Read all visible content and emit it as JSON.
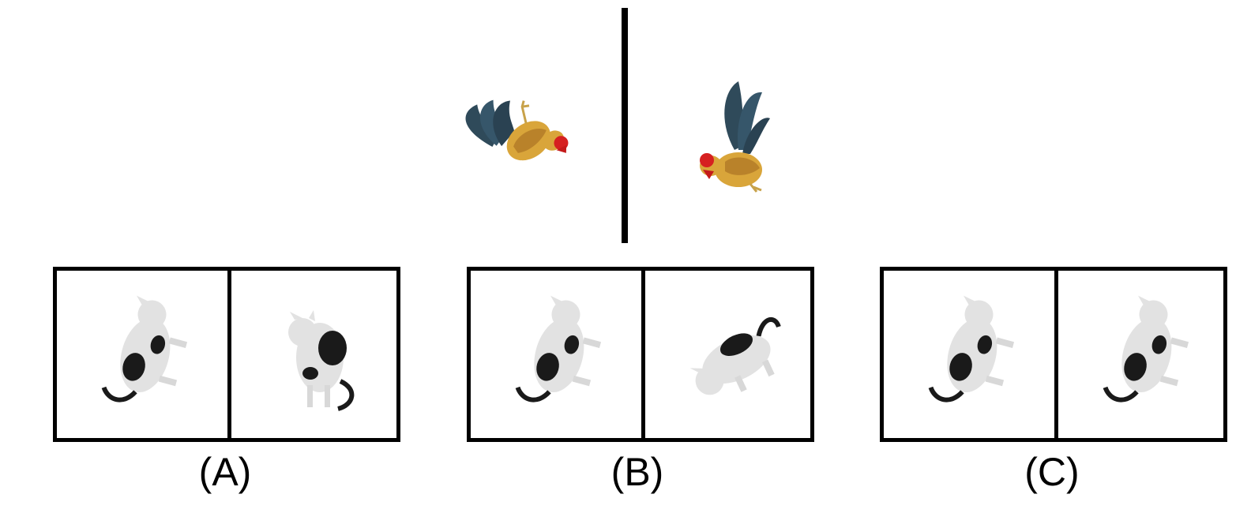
{
  "reference": {
    "left_figure": "rooster-icon",
    "right_figure": "rooster-icon"
  },
  "options": [
    {
      "label": "(A)",
      "left_figure": "cat-icon",
      "right_figure": "cat-icon"
    },
    {
      "label": "(B)",
      "left_figure": "cat-icon",
      "right_figure": "cat-icon"
    },
    {
      "label": "(C)",
      "left_figure": "cat-icon",
      "right_figure": "cat-icon"
    }
  ],
  "colors": {
    "rooster_tail": "#2f4a5a",
    "rooster_body": "#d9a53a",
    "rooster_comb": "#d62020",
    "cat_fur": "#e2e2e2",
    "cat_patch": "#1a1a1a"
  }
}
